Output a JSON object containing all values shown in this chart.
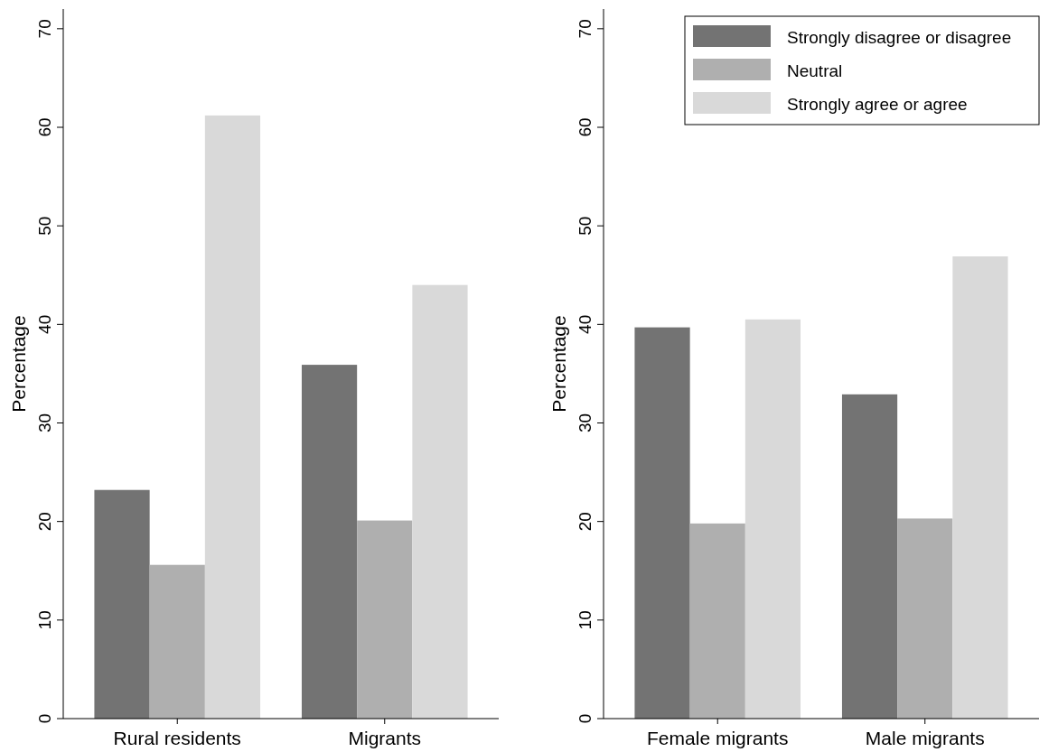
{
  "chart_data": [
    {
      "type": "bar",
      "ylabel": "Percentage",
      "categories": [
        "Rural residents",
        "Migrants"
      ],
      "series": [
        {
          "color": "#737373",
          "values": [
            23.2,
            35.9
          ]
        },
        {
          "color": "#afafaf",
          "values": [
            15.6,
            20.1
          ]
        },
        {
          "color": "#d9d9d9",
          "values": [
            61.2,
            44.0
          ]
        }
      ],
      "ylim": [
        0,
        72
      ],
      "yticks": [
        0,
        10,
        20,
        30,
        40,
        50,
        60,
        70
      ],
      "grid": false,
      "legend": false
    },
    {
      "type": "bar",
      "ylabel": "Percentage",
      "categories": [
        "Female migrants",
        "Male migrants"
      ],
      "series": [
        {
          "name": "Strongly disagree or disagree",
          "color": "#737373",
          "values": [
            39.7,
            32.9
          ]
        },
        {
          "name": "Neutral",
          "color": "#afafaf",
          "values": [
            19.8,
            20.3
          ]
        },
        {
          "name": "Strongly agree or agree",
          "color": "#d9d9d9",
          "values": [
            40.5,
            46.9
          ]
        }
      ],
      "ylim": [
        0,
        72
      ],
      "yticks": [
        0,
        10,
        20,
        30,
        40,
        50,
        60,
        70
      ],
      "grid": false,
      "legend": "top right"
    }
  ]
}
